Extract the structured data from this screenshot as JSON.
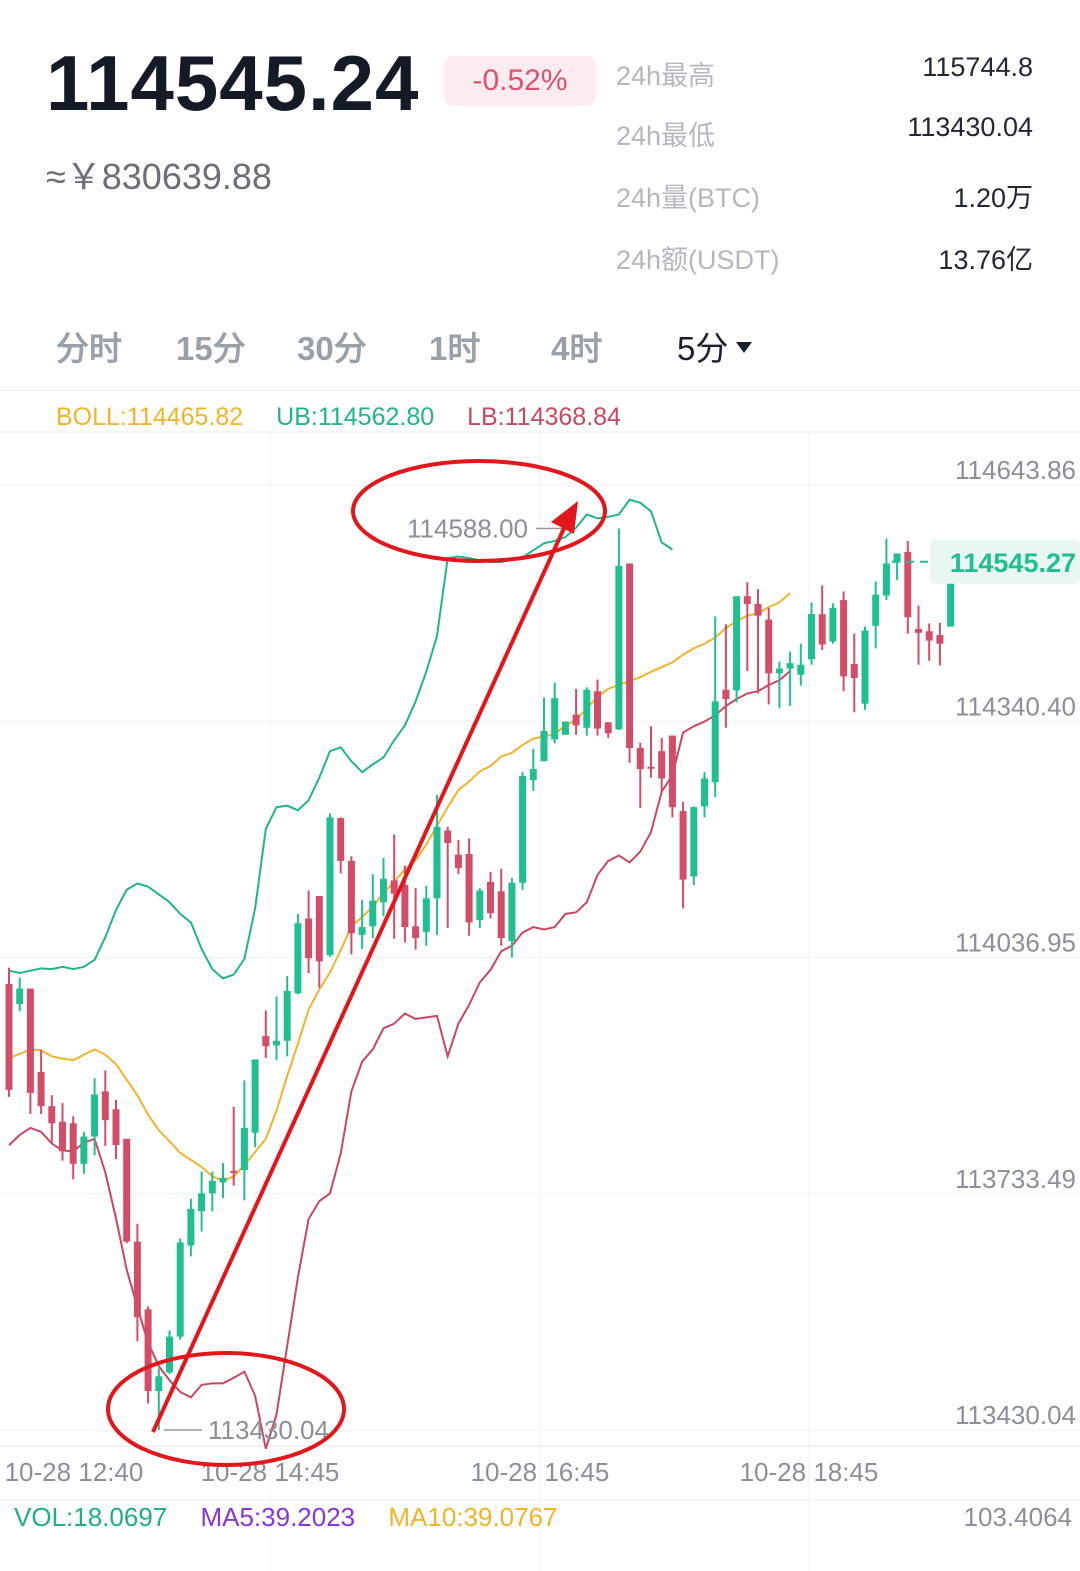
{
  "header": {
    "price": "114545.24",
    "change": "-0.52%",
    "cny": "≈￥830639.88",
    "stats": [
      {
        "label": "24h最高",
        "value": "115744.8"
      },
      {
        "label": "24h最低",
        "value": "113430.04"
      },
      {
        "label": "24h量(BTC)",
        "value": "1.20万"
      },
      {
        "label": "24h额(USDT)",
        "value": "13.76亿"
      }
    ]
  },
  "tabs": [
    {
      "label": "分时"
    },
    {
      "label": "15分"
    },
    {
      "label": "30分"
    },
    {
      "label": "1时"
    },
    {
      "label": "4时"
    },
    {
      "label": "5分",
      "active": true
    }
  ],
  "indicators": {
    "boll": "BOLL:114465.82",
    "ub": "UB:114562.80",
    "lb": "LB:114368.84",
    "boll_color": "#f0b429",
    "ub_color": "#21b58a",
    "lb_color": "#c9485f"
  },
  "volume": {
    "vol": "VOL:18.0697",
    "ma5": "MA5:39.2023",
    "ma10": "MA10:39.0767",
    "right": "103.4064"
  },
  "colors": {
    "up": "#1fbf8f",
    "down": "#d34c68",
    "annotation": "#e3161c"
  },
  "chart_data": {
    "type": "candlestick",
    "y_ticks": [
      "114643.86",
      "114340.40",
      "114036.95",
      "113733.49",
      "113430.04"
    ],
    "y_tick_values": [
      114643.86,
      114340.4,
      114036.95,
      113733.49,
      113430.04
    ],
    "ylim": [
      113430.04,
      114643.86
    ],
    "x_ticks": [
      "10-28 12:40",
      "10-28 14:45",
      "10-28 16:45",
      "10-28 18:45"
    ],
    "current_price": "114545.27",
    "current_price_value": 114545.27,
    "high_marker": "114588.00",
    "high_marker_value": 114588.0,
    "low_marker": "113430.04",
    "low_marker_value": 113430.04,
    "candles": [
      {
        "o": 114003,
        "h": 114024,
        "c": 113867,
        "l": 113858
      },
      {
        "o": 113977,
        "h": 114011,
        "c": 113997,
        "l": 113968
      },
      {
        "o": 113997,
        "h": 113997,
        "c": 113863,
        "l": 113836
      },
      {
        "o": 113890,
        "h": 113918,
        "c": 113846,
        "l": 113836
      },
      {
        "o": 113846,
        "h": 113860,
        "c": 113824,
        "l": 113799
      },
      {
        "o": 113826,
        "h": 113850,
        "c": 113788,
        "l": 113776
      },
      {
        "o": 113824,
        "h": 113833,
        "c": 113772,
        "l": 113752
      },
      {
        "o": 113772,
        "h": 113813,
        "c": 113807,
        "l": 113759
      },
      {
        "o": 113807,
        "h": 113882,
        "c": 113861,
        "l": 113783
      },
      {
        "o": 113865,
        "h": 113892,
        "c": 113828,
        "l": 113795
      },
      {
        "o": 113842,
        "h": 113854,
        "c": 113796,
        "l": 113778
      },
      {
        "o": 113804,
        "h": 113804,
        "c": 113672,
        "l": 113670
      },
      {
        "o": 113672,
        "h": 113695,
        "c": 113575,
        "l": 113544
      },
      {
        "o": 113585,
        "h": 113589,
        "c": 113480,
        "l": 113464
      },
      {
        "o": 113480,
        "h": 113509,
        "c": 113499,
        "l": 113430
      },
      {
        "o": 113504,
        "h": 113558,
        "c": 113550,
        "l": 113502
      },
      {
        "o": 113550,
        "h": 113676,
        "c": 113671,
        "l": 113546
      },
      {
        "o": 113667,
        "h": 113727,
        "c": 113714,
        "l": 113653
      },
      {
        "o": 113711,
        "h": 113762,
        "c": 113734,
        "l": 113685
      },
      {
        "o": 113734,
        "h": 113762,
        "c": 113750,
        "l": 113711
      },
      {
        "o": 113748,
        "h": 113773,
        "c": 113754,
        "l": 113728
      },
      {
        "o": 113763,
        "h": 113845,
        "c": 113762,
        "l": 113744
      },
      {
        "o": 113764,
        "h": 113879,
        "c": 113818,
        "l": 113725
      },
      {
        "o": 113812,
        "h": 113904,
        "c": 113906,
        "l": 113793
      },
      {
        "o": 113936,
        "h": 113969,
        "c": 113923,
        "l": 113908
      },
      {
        "o": 113924,
        "h": 113987,
        "c": 113930,
        "l": 113905
      },
      {
        "o": 113930,
        "h": 114013,
        "c": 113994,
        "l": 113910
      },
      {
        "o": 113991,
        "h": 114093,
        "c": 114081,
        "l": 113990
      },
      {
        "o": 114087,
        "h": 114123,
        "c": 114036,
        "l": 114017
      },
      {
        "o": 114116,
        "h": 114116,
        "c": 114032,
        "l": 113998
      },
      {
        "o": 114040,
        "h": 114222,
        "c": 114217,
        "l": 114038
      },
      {
        "o": 114216,
        "h": 114217,
        "c": 114161,
        "l": 114145
      },
      {
        "o": 114161,
        "h": 114167,
        "c": 114068,
        "l": 114041
      },
      {
        "o": 114066,
        "h": 114111,
        "c": 114076,
        "l": 114048
      },
      {
        "o": 114077,
        "h": 114144,
        "c": 114110,
        "l": 114062
      },
      {
        "o": 114108,
        "h": 114165,
        "c": 114138,
        "l": 114090
      },
      {
        "o": 114136,
        "h": 114195,
        "c": 114119,
        "l": 114061
      },
      {
        "o": 114130,
        "h": 114155,
        "c": 114076,
        "l": 114056
      },
      {
        "o": 114077,
        "h": 114126,
        "c": 114062,
        "l": 114047
      },
      {
        "o": 114070,
        "h": 114129,
        "c": 114113,
        "l": 114052
      },
      {
        "o": 114113,
        "h": 114246,
        "c": 114205,
        "l": 114066
      },
      {
        "o": 114200,
        "h": 114205,
        "c": 114184,
        "l": 114075
      },
      {
        "o": 114169,
        "h": 114188,
        "c": 114152,
        "l": 114144
      },
      {
        "o": 114170,
        "h": 114190,
        "c": 114082,
        "l": 114065
      },
      {
        "o": 114085,
        "h": 114126,
        "c": 114123,
        "l": 114075
      },
      {
        "o": 114134,
        "h": 114147,
        "c": 114094,
        "l": 114087
      },
      {
        "o": 114122,
        "h": 114151,
        "c": 114062,
        "l": 114052
      },
      {
        "o": 114058,
        "h": 114139,
        "c": 114133,
        "l": 114037
      },
      {
        "o": 114133,
        "h": 114275,
        "c": 114270,
        "l": 114124
      },
      {
        "o": 114265,
        "h": 114305,
        "c": 114279,
        "l": 114251
      },
      {
        "o": 114289,
        "h": 114371,
        "c": 114328,
        "l": 114289
      },
      {
        "o": 114317,
        "h": 114390,
        "c": 114370,
        "l": 114312
      },
      {
        "o": 114323,
        "h": 114339,
        "c": 114340,
        "l": 114335
      },
      {
        "o": 114349,
        "h": 114382,
        "c": 114335,
        "l": 114323
      },
      {
        "o": 114332,
        "h": 114384,
        "c": 114381,
        "l": 114322
      },
      {
        "o": 114379,
        "h": 114394,
        "c": 114331,
        "l": 114322
      },
      {
        "o": 114339,
        "h": 114339,
        "c": 114325,
        "l": 114319
      },
      {
        "o": 114330,
        "h": 114588,
        "c": 114540,
        "l": 114329
      },
      {
        "o": 114543,
        "h": 114543,
        "c": 114306,
        "l": 114287
      },
      {
        "o": 114306,
        "h": 114313,
        "c": 114279,
        "l": 114229
      },
      {
        "o": 114282,
        "h": 114334,
        "c": 114281,
        "l": 114268
      },
      {
        "o": 114302,
        "h": 114319,
        "c": 114267,
        "l": 114250
      },
      {
        "o": 114322,
        "h": 114319,
        "c": 114230,
        "l": 114217
      },
      {
        "o": 114225,
        "h": 114237,
        "c": 114137,
        "l": 114100
      },
      {
        "o": 114141,
        "h": 114231,
        "c": 114230,
        "l": 114130
      },
      {
        "o": 114231,
        "h": 114275,
        "c": 114267,
        "l": 114217
      },
      {
        "o": 114262,
        "h": 114475,
        "c": 114366,
        "l": 114243
      },
      {
        "o": 114381,
        "h": 114465,
        "c": 114369,
        "l": 114332
      },
      {
        "o": 114380,
        "h": 114500,
        "c": 114501,
        "l": 114365
      },
      {
        "o": 114501,
        "h": 114519,
        "c": 114491,
        "l": 114405
      },
      {
        "o": 114491,
        "h": 114510,
        "c": 114476,
        "l": 114376
      },
      {
        "o": 114471,
        "h": 114486,
        "c": 114402,
        "l": 114362
      },
      {
        "o": 114402,
        "h": 114417,
        "c": 114408,
        "l": 114357
      },
      {
        "o": 114408,
        "h": 114430,
        "c": 114415,
        "l": 114360
      },
      {
        "o": 114400,
        "h": 114440,
        "c": 114413,
        "l": 114386
      },
      {
        "o": 114420,
        "h": 114493,
        "c": 114478,
        "l": 114413
      },
      {
        "o": 114478,
        "h": 114515,
        "c": 114439,
        "l": 114432
      },
      {
        "o": 114443,
        "h": 114492,
        "c": 114486,
        "l": 114440
      },
      {
        "o": 114496,
        "h": 114507,
        "c": 114398,
        "l": 114379
      },
      {
        "o": 114414,
        "h": 114453,
        "c": 114396,
        "l": 114352
      },
      {
        "o": 114363,
        "h": 114462,
        "c": 114457,
        "l": 114355
      },
      {
        "o": 114463,
        "h": 114520,
        "c": 114503,
        "l": 114434
      },
      {
        "o": 114502,
        "h": 114575,
        "c": 114543,
        "l": 114496
      },
      {
        "o": 114545,
        "h": 114547,
        "c": 114556,
        "l": 114522
      },
      {
        "o": 114558,
        "h": 114572,
        "c": 114474,
        "l": 114453
      },
      {
        "o": 114459,
        "h": 114489,
        "c": 114454,
        "l": 114413
      },
      {
        "o": 114456,
        "h": 114466,
        "c": 114444,
        "l": 114418
      },
      {
        "o": 114451,
        "h": 114467,
        "c": 114440,
        "l": 114412
      },
      {
        "o": 114462,
        "h": 114547,
        "c": 114528,
        "l": 114462
      },
      {
        "o": 114529,
        "h": 114564,
        "c": 114545,
        "l": 114529
      }
    ],
    "boll_mid": [
      113908,
      113913,
      113919,
      113918,
      113910,
      113907,
      113905,
      113912,
      113919,
      113912,
      113900,
      113880,
      113860,
      113835,
      113815,
      113801,
      113786,
      113777,
      113768,
      113756,
      113750,
      113756,
      113770,
      113787,
      113804,
      113840,
      113885,
      113926,
      113970,
      113996,
      114018,
      114046,
      114077,
      114089,
      114102,
      114120,
      114134,
      114150,
      114162,
      114182,
      114206,
      114230,
      114252,
      114263,
      114276,
      114283,
      114295,
      114300,
      114310,
      114318,
      114321,
      114324,
      114335,
      114342,
      114357,
      114372,
      114382,
      114387,
      114392,
      114397,
      114404,
      114410,
      114416,
      114426,
      114434,
      114440,
      114448,
      114460,
      114469,
      114476,
      114479,
      114487,
      114493,
      114505
    ],
    "boll_upper": [
      114020,
      114017,
      114020,
      114023,
      114022,
      114025,
      114022,
      114025,
      114034,
      114063,
      114098,
      114124,
      114132,
      114128,
      114118,
      114108,
      114093,
      114082,
      114048,
      114022,
      114010,
      114015,
      114035,
      114100,
      114202,
      114230,
      114232,
      114226,
      114239,
      114268,
      114302,
      114307,
      114289,
      114275,
      114285,
      114294,
      114316,
      114335,
      114366,
      114404,
      114450,
      114550,
      114552,
      114550,
      114547,
      114545,
      114545,
      114548,
      114551,
      114560,
      114569,
      114572,
      114577,
      114589,
      114606,
      114601,
      114603,
      114606,
      114625,
      114621,
      114610,
      114570,
      114561
    ]
  }
}
